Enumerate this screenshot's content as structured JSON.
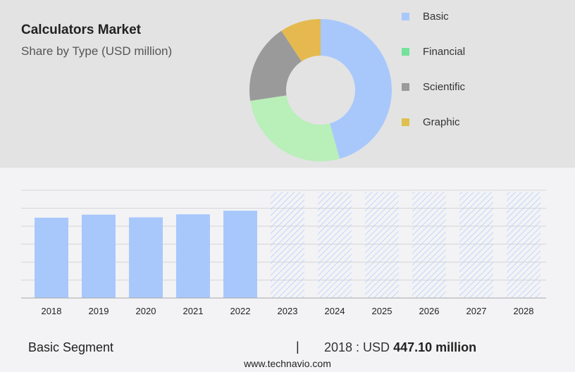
{
  "chart_data": [
    {
      "type": "pie",
      "variant": "donut",
      "title": "Calculators Market",
      "subtitle": "Share by Type (USD million)",
      "categories": [
        "Basic",
        "Financial",
        "Scientific",
        "Graphic"
      ],
      "values": [
        45.7,
        26.9,
        18.1,
        9.3
      ],
      "slice_colors": [
        "#a8c8fc",
        "#b9efb9",
        "#9a9a9a",
        "#e5b94f"
      ],
      "legend_colors": [
        "#a8c8fc",
        "#74e29a",
        "#9a9a9a",
        "#dfc04f"
      ],
      "legend_placement": "right"
    },
    {
      "type": "bar",
      "categories": [
        "2018",
        "2019",
        "2020",
        "2021",
        "2022",
        "2023",
        "2024",
        "2025",
        "2026",
        "2027",
        "2028"
      ],
      "values": [
        447.1,
        464,
        449,
        466,
        486,
        null,
        null,
        null,
        null,
        null,
        null
      ],
      "forecast": [
        "2023",
        "2024",
        "2025",
        "2026",
        "2027",
        "2028"
      ],
      "ylim": [
        0,
        600
      ],
      "grid": true,
      "bar_color": "#a8c8fc"
    }
  ],
  "footer": {
    "segment": "Basic Segment",
    "separator": "|",
    "year_label": "2018 : USD ",
    "value": "447.10 million",
    "site": "www.technavio.com"
  }
}
